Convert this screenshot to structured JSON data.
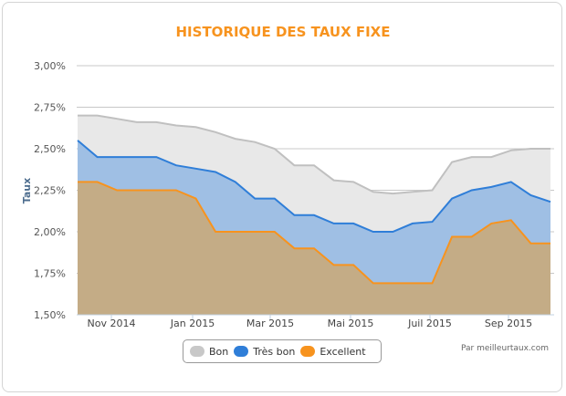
{
  "chart": {
    "title": "HISTORIQUE DES TAUX FIXE",
    "ylabel": "Taux",
    "credit": "Par meilleurtaux.com",
    "yticks": [
      "3,00%",
      "2,75%",
      "2,50%",
      "2,25%",
      "2,00%",
      "1,75%",
      "1,50%"
    ],
    "xticks": [
      "Nov 2014",
      "Jan 2015",
      "Mar 2015",
      "Mai 2015",
      "Juil 2015",
      "Sep 2015"
    ],
    "legend": [
      {
        "label": "Bon",
        "color": "#c8c8c8"
      },
      {
        "label": "Très bon",
        "color": "#2f7ed8"
      },
      {
        "label": "Excellent",
        "color": "#f7931e"
      }
    ],
    "colors": {
      "title": "#f7931e",
      "bon_line": "#c0c0c0",
      "bon_fill": "#e8e8e8",
      "tres_bon_line": "#2f7ed8",
      "tres_bon_fill": "#9fbfe4",
      "excellent_line": "#f7931e",
      "excellent_fill": "#c4ac86"
    }
  },
  "chart_data": {
    "type": "area",
    "title": "HISTORIQUE DES TAUX FIXE",
    "xlabel": "",
    "ylabel": "Taux",
    "ylim": [
      1.5,
      3.0
    ],
    "yticks": [
      1.5,
      1.75,
      2.0,
      2.25,
      2.5,
      2.75,
      3.0
    ],
    "xtick_labels": [
      "Nov 2014",
      "Jan 2015",
      "Mar 2015",
      "Mai 2015",
      "Juil 2015",
      "Sep 2015"
    ],
    "grid": true,
    "legend_position": "bottom",
    "x": [
      "2014-10-01",
      "2014-10-15",
      "2014-11-01",
      "2014-11-15",
      "2014-12-01",
      "2014-12-15",
      "2015-01-01",
      "2015-01-15",
      "2015-02-01",
      "2015-02-15",
      "2015-03-01",
      "2015-03-15",
      "2015-04-01",
      "2015-04-15",
      "2015-05-01",
      "2015-05-15",
      "2015-06-01",
      "2015-06-15",
      "2015-07-01",
      "2015-07-15",
      "2015-08-01",
      "2015-08-15",
      "2015-09-01",
      "2015-09-15",
      "2015-10-01"
    ],
    "series": [
      {
        "name": "Bon",
        "values": [
          2.7,
          2.7,
          2.68,
          2.66,
          2.66,
          2.64,
          2.63,
          2.6,
          2.56,
          2.54,
          2.5,
          2.4,
          2.4,
          2.31,
          2.3,
          2.24,
          2.23,
          2.24,
          2.25,
          2.42,
          2.45,
          2.45,
          2.49,
          2.5,
          2.5
        ]
      },
      {
        "name": "Très bon",
        "values": [
          2.55,
          2.45,
          2.45,
          2.45,
          2.45,
          2.4,
          2.38,
          2.36,
          2.3,
          2.2,
          2.2,
          2.1,
          2.1,
          2.05,
          2.05,
          2.0,
          2.0,
          2.05,
          2.06,
          2.2,
          2.25,
          2.27,
          2.3,
          2.22,
          2.18
        ]
      },
      {
        "name": "Excellent",
        "values": [
          2.3,
          2.3,
          2.25,
          2.25,
          2.25,
          2.25,
          2.2,
          2.0,
          2.0,
          2.0,
          2.0,
          1.9,
          1.9,
          1.8,
          1.8,
          1.69,
          1.69,
          1.69,
          1.69,
          1.97,
          1.97,
          2.05,
          2.07,
          1.93,
          1.93
        ]
      }
    ]
  }
}
